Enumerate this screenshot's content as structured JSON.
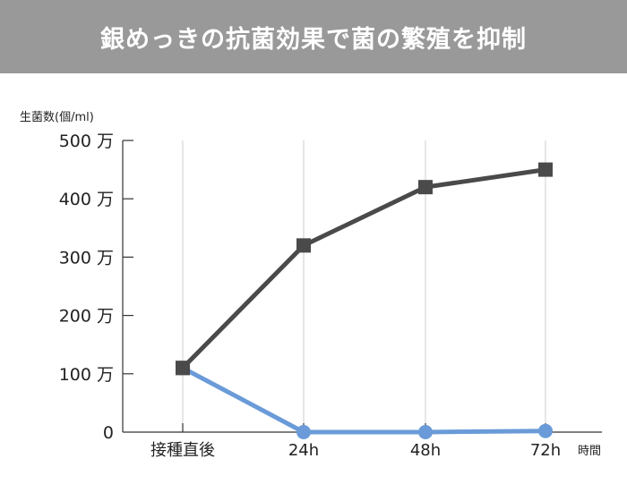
{
  "title": "銀めっきの抗菌効果で菌の繁殖を抑制",
  "colors": {
    "title_background": "#999999",
    "series_untreated": "#4a4a4a",
    "series_silver": "#6a9bd8",
    "gridline": "#cccccc",
    "axis": "#333333"
  },
  "chart_data": {
    "type": "line",
    "ylabel": "生菌数(個/ml)",
    "xlabel": "時間",
    "categories": [
      "接種直後",
      "24h",
      "48h",
      "72h"
    ],
    "y_ticks": [
      {
        "value": 0,
        "label": "0"
      },
      {
        "value": 1000000,
        "label": "100 万"
      },
      {
        "value": 2000000,
        "label": "200 万"
      },
      {
        "value": 3000000,
        "label": "300 万"
      },
      {
        "value": 4000000,
        "label": "400 万"
      },
      {
        "value": 5000000,
        "label": "500 万"
      }
    ],
    "ylim": [
      0,
      5000000
    ],
    "grid": "vertical",
    "series": [
      {
        "key": "untreated",
        "marker": "square",
        "values": [
          1100000,
          3200000,
          4200000,
          4500000
        ]
      },
      {
        "key": "silver",
        "marker": "circle",
        "values": [
          1100000,
          0,
          0,
          20000
        ]
      }
    ]
  }
}
